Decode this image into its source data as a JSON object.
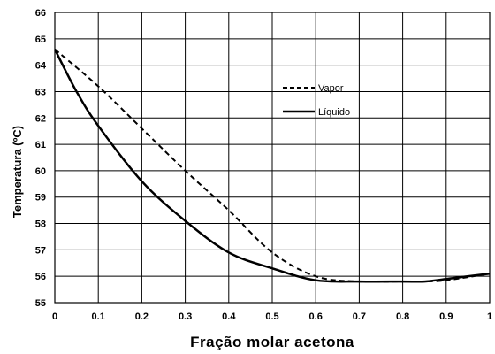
{
  "chart_data": {
    "type": "line",
    "xlabel": "Fração molar  acetona",
    "ylabel": "Temperatura (ºC)",
    "xlim": [
      0,
      1
    ],
    "ylim": [
      55,
      66
    ],
    "x_ticks": [
      "0",
      "0.1",
      "0.2",
      "0.3",
      "0.4",
      "0.5",
      "0.6",
      "0.7",
      "0.8",
      "0.9",
      "1"
    ],
    "y_ticks": [
      "55",
      "56",
      "57",
      "58",
      "59",
      "60",
      "61",
      "62",
      "63",
      "64",
      "65",
      "66"
    ],
    "grid": true,
    "legend_position": "upper-right inside plot",
    "series": [
      {
        "name": "Vapor",
        "style": "dashed",
        "color": "#000000",
        "x": [
          0,
          0.1,
          0.2,
          0.3,
          0.4,
          0.5,
          0.6,
          0.7,
          0.8,
          0.85,
          0.9,
          1
        ],
        "y": [
          64.6,
          63.2,
          61.6,
          60.0,
          58.5,
          56.9,
          56.0,
          55.8,
          55.8,
          55.8,
          55.85,
          56.1
        ]
      },
      {
        "name": "Líquido",
        "style": "solid",
        "color": "#000000",
        "x": [
          0,
          0.05,
          0.1,
          0.2,
          0.3,
          0.4,
          0.5,
          0.6,
          0.7,
          0.8,
          0.85,
          0.9,
          1
        ],
        "y": [
          64.6,
          63.0,
          61.7,
          59.6,
          58.1,
          56.9,
          56.3,
          55.85,
          55.8,
          55.8,
          55.8,
          55.9,
          56.1
        ]
      }
    ]
  }
}
